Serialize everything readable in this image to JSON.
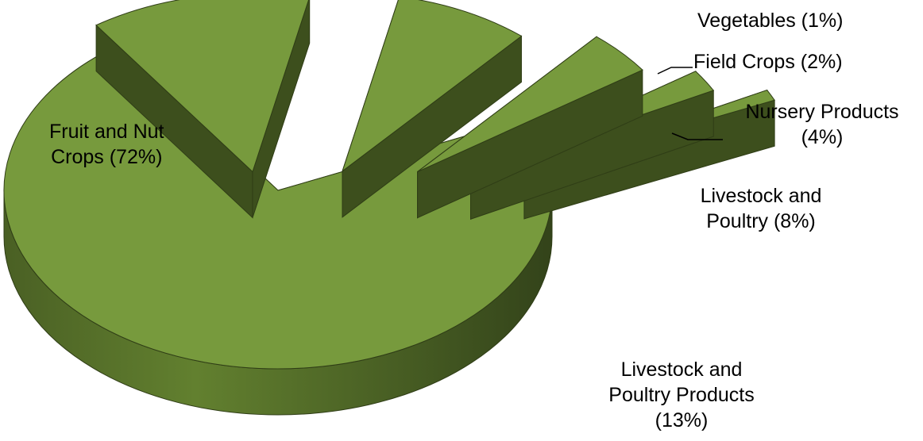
{
  "chart_data": {
    "type": "pie",
    "style": "3d-exploded",
    "slices": [
      {
        "name": "Fruit and Nut Crops",
        "percent": 72,
        "label_lines": [
          "Fruit and Nut",
          "Crops  (72%)"
        ]
      },
      {
        "name": "Livestock and Poultry Products",
        "percent": 13,
        "label_lines": [
          "Livestock and",
          "Poultry Products",
          "(13%)"
        ]
      },
      {
        "name": "Livestock and Poultry",
        "percent": 8,
        "label_lines": [
          "Livestock and",
          "Poultry (8%)"
        ]
      },
      {
        "name": "Nursery Products",
        "percent": 4,
        "label_lines": [
          "Nursery Products",
          "(4%)"
        ]
      },
      {
        "name": "Field Crops",
        "percent": 2,
        "label_lines": [
          "Field Crops (2%)"
        ]
      },
      {
        "name": "Vegetables",
        "percent": 1,
        "label_lines": [
          "Vegetables (1%)"
        ]
      }
    ],
    "colors": {
      "top": "#779a3d",
      "side_light": "#5f7a30",
      "side_dark": "#3d4f1d",
      "edge": "#2f3d16",
      "leader": "#000000"
    }
  }
}
